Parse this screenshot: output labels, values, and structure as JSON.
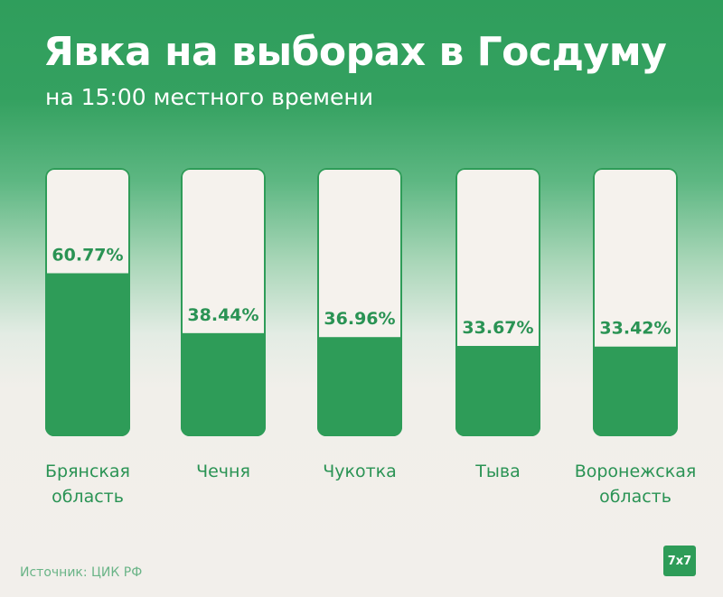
{
  "header": {
    "title": "Явка на выборах в Госдуму",
    "subtitle": "на 15:00 местного времени"
  },
  "chart_data": {
    "type": "bar",
    "title": "Явка на выборах в Госдуму",
    "subtitle": "на 15:00 местного времени",
    "categories": [
      [
        "Брянская",
        "область"
      ],
      [
        "Чечня"
      ],
      [
        "Чукотка"
      ],
      [
        "Тыва"
      ],
      [
        "Воронежская",
        "область"
      ]
    ],
    "values": [
      60.77,
      38.44,
      36.96,
      33.67,
      33.42
    ],
    "value_labels": [
      "60.77%",
      "38.44%",
      "36.96%",
      "33.67%",
      "33.42%"
    ],
    "ylim": [
      0,
      100
    ],
    "grid": false,
    "legend": "none"
  },
  "colors": {
    "bar_fill": "#2e9c58",
    "bar_track": "#f5f2ed",
    "bar_border": "#2e9c58",
    "label": "#2a9354"
  },
  "footer": {
    "source": "Источник: ЦИК РФ",
    "logo": "7x7"
  }
}
